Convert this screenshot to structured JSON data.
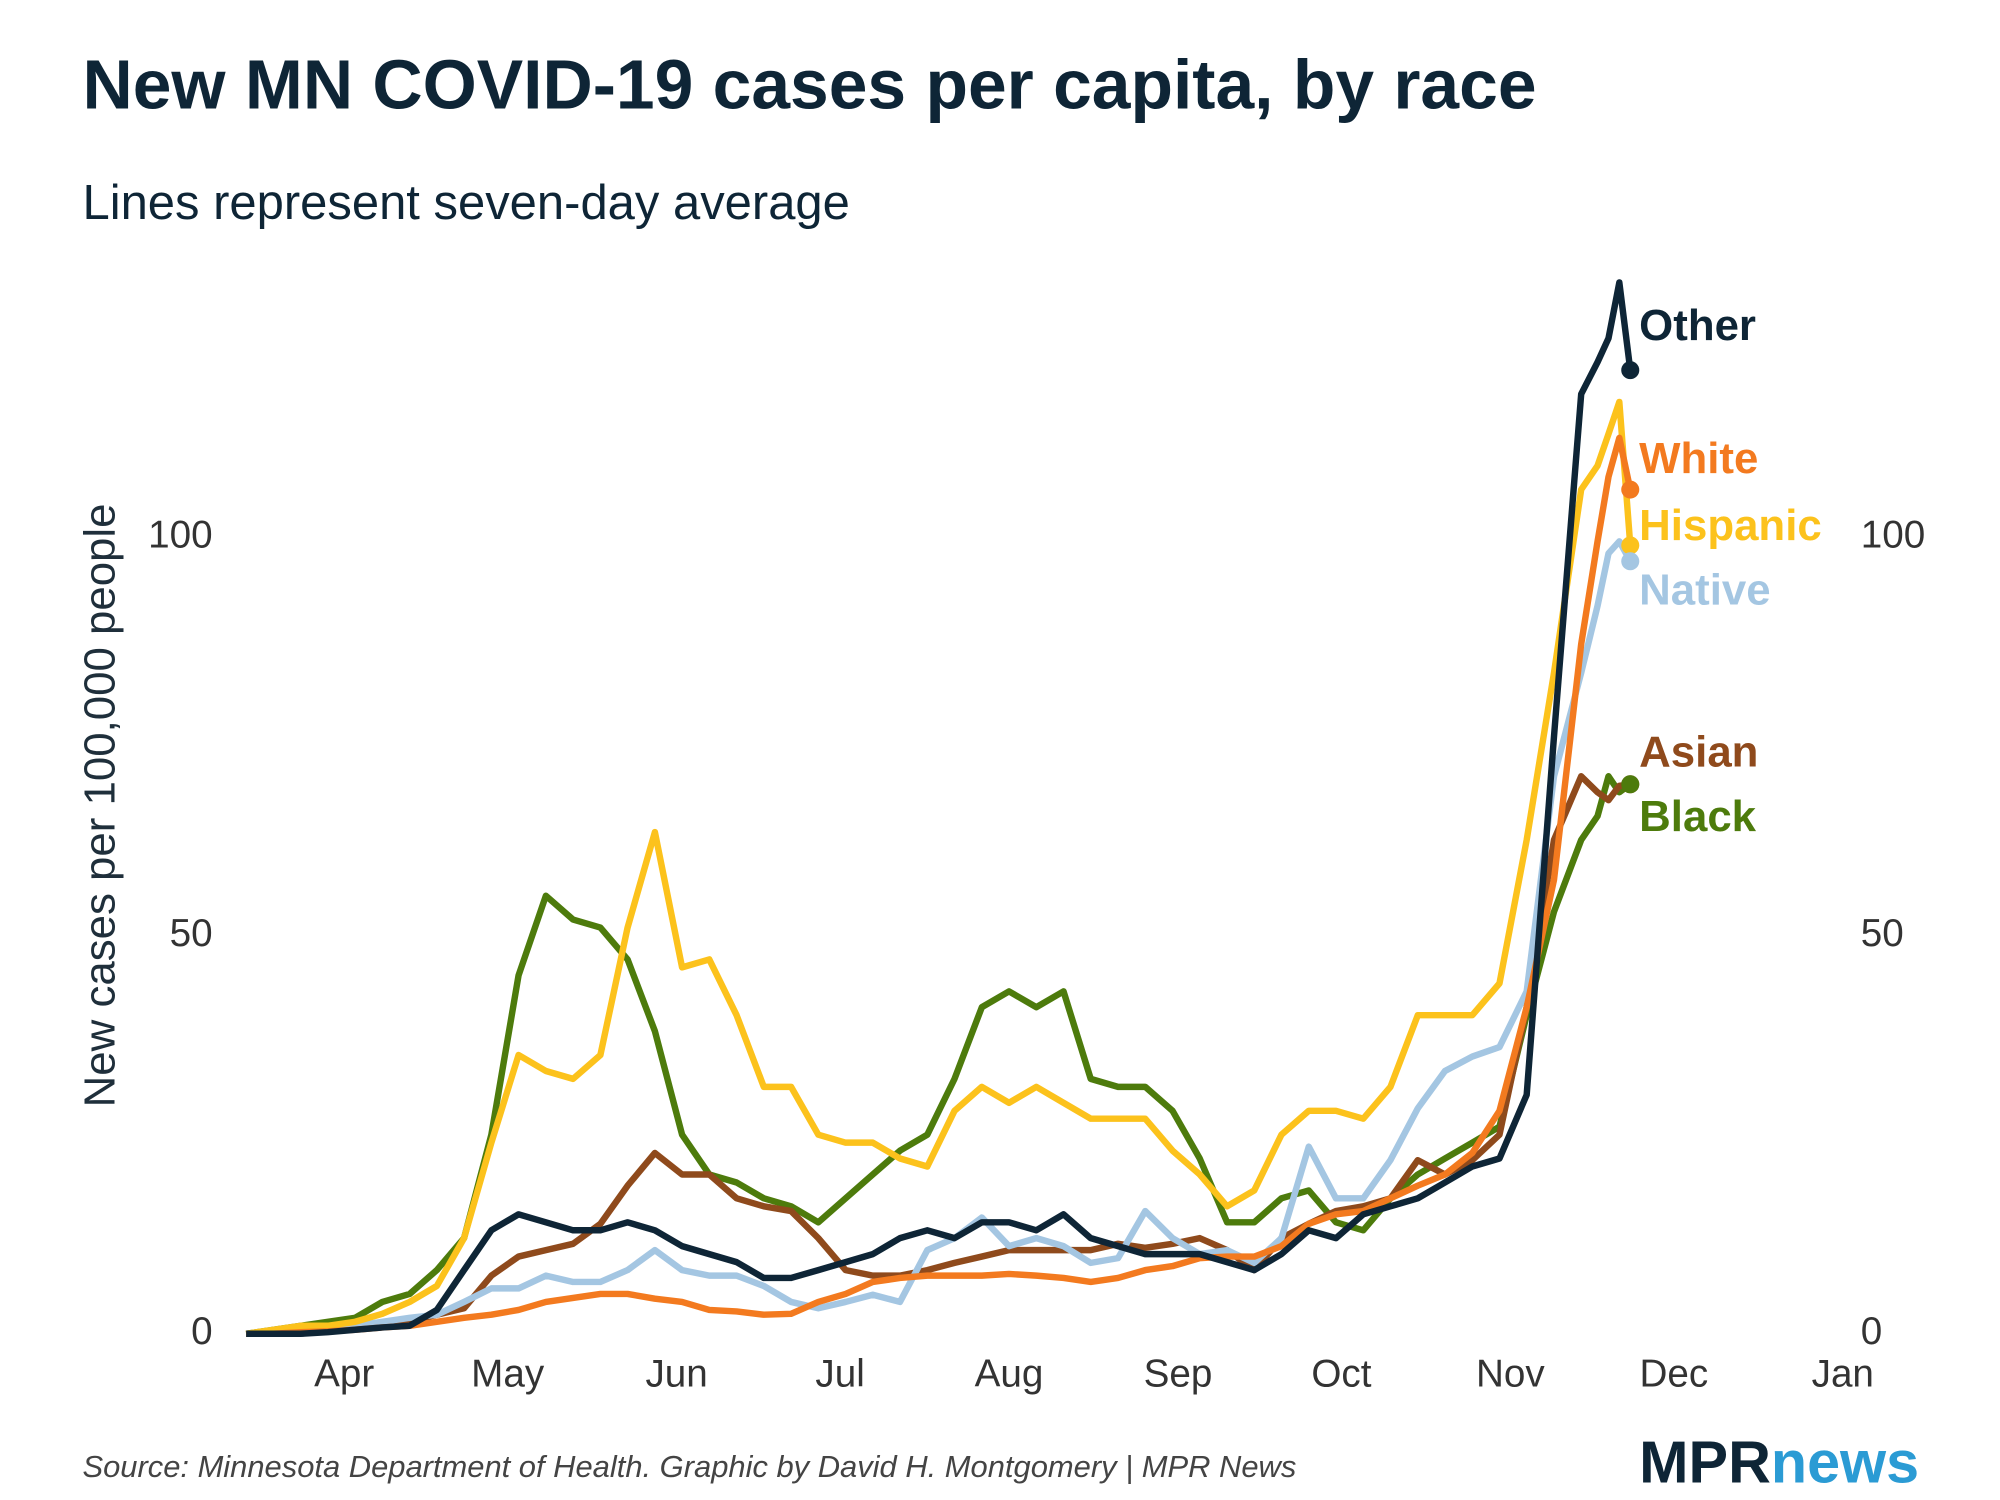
{
  "chart_data": {
    "type": "line",
    "title": "New MN COVID-19 cases per capita, by race",
    "subtitle": "Lines represent seven-day average",
    "y_label": "New cases per 100,000 people",
    "source": "Source: Minnesota Department of Health. Graphic by David H. Montgomery | MPR News",
    "x": [
      13,
      18,
      23,
      28,
      33,
      38,
      43,
      48,
      53,
      58,
      63,
      68,
      73,
      78,
      83,
      88,
      93,
      98,
      103,
      108,
      113,
      118,
      123,
      128,
      133,
      138,
      143,
      148,
      153,
      158,
      163,
      168,
      173,
      178,
      183,
      188,
      193,
      198,
      203,
      208,
      213,
      218,
      223,
      228,
      233,
      238,
      243,
      248,
      253,
      258,
      261,
      263,
      265,
      267
    ],
    "xlim": [
      13,
      306
    ],
    "xticks": [
      {
        "value": 31,
        "label": "Apr"
      },
      {
        "value": 61,
        "label": "May"
      },
      {
        "value": 92,
        "label": "Jun"
      },
      {
        "value": 122,
        "label": "Jul"
      },
      {
        "value": 153,
        "label": "Aug"
      },
      {
        "value": 184,
        "label": "Sep"
      },
      {
        "value": 214,
        "label": "Oct"
      },
      {
        "value": 245,
        "label": "Nov"
      },
      {
        "value": 275,
        "label": "Dec"
      },
      {
        "value": 306,
        "label": "Jan"
      }
    ],
    "ylim": [
      0,
      135
    ],
    "yticks": [
      0,
      50,
      100
    ],
    "grid": false,
    "series": [
      {
        "name": "Other",
        "color": "#0e2536",
        "values": [
          0,
          0,
          0,
          0.2,
          0.5,
          0.8,
          1,
          3,
          8,
          13,
          15,
          14,
          13,
          13,
          14,
          13,
          11,
          10,
          9,
          7,
          7,
          8,
          9,
          10,
          12,
          13,
          12,
          14,
          14,
          13,
          15,
          12,
          11,
          10,
          10,
          10,
          9,
          8,
          10,
          13,
          12,
          15,
          16,
          17,
          19,
          21,
          22,
          30,
          75,
          118,
          122,
          125,
          132,
          121
        ]
      },
      {
        "name": "White",
        "color": "#f37a1f",
        "values": [
          0,
          0,
          0.2,
          0.3,
          0.5,
          0.8,
          1,
          1.5,
          2,
          2.4,
          3,
          4,
          4.5,
          5,
          5,
          4.4,
          4,
          3,
          2.8,
          2.4,
          2.5,
          4,
          5,
          6.5,
          7,
          7.3,
          7.3,
          7.3,
          7.5,
          7.3,
          7,
          6.5,
          7,
          8,
          8.5,
          9.5,
          9.7,
          9.7,
          11,
          13.8,
          15,
          15.4,
          17,
          18.6,
          20,
          22.7,
          28,
          41,
          57,
          86.6,
          99.5,
          107.6,
          112.5,
          106
        ]
      },
      {
        "name": "Hispanic",
        "color": "#fcc21c",
        "values": [
          0,
          0.5,
          1,
          1,
          1.5,
          2.5,
          4,
          6,
          12,
          24,
          35,
          33,
          32,
          35,
          51,
          63,
          46,
          47,
          40,
          31,
          31,
          25,
          24,
          24,
          22,
          21,
          28,
          31,
          29,
          31,
          29,
          27,
          27,
          27,
          23,
          20,
          16,
          18,
          25,
          28,
          28,
          27,
          31,
          40,
          40,
          40,
          44,
          62,
          83,
          106,
          109,
          113,
          117,
          99
        ]
      },
      {
        "name": "Native",
        "color": "#a4c6e2",
        "values": [
          0,
          0,
          0,
          0.5,
          1,
          1.5,
          2,
          2.4,
          4,
          5.7,
          5.7,
          7.3,
          6.5,
          6.5,
          8,
          10.5,
          8,
          7.3,
          7.3,
          6,
          4,
          3.2,
          4,
          4.9,
          4,
          10.5,
          12,
          14.6,
          11,
          12,
          11,
          8.9,
          9.5,
          15.4,
          12,
          10,
          10.5,
          8.9,
          12,
          23.5,
          17,
          17,
          21.8,
          28.3,
          33,
          34.8,
          36,
          43,
          70,
          83,
          91.4,
          98,
          99.5,
          97
        ]
      },
      {
        "name": "Asian",
        "color": "#8f4a1c",
        "values": [
          0,
          0,
          0,
          0.5,
          0.8,
          1,
          1.5,
          2.4,
          3.2,
          7.3,
          9.7,
          10.5,
          11.3,
          13.8,
          18.6,
          22.7,
          20,
          20,
          17,
          16,
          15.4,
          12,
          8,
          7.3,
          7.3,
          8,
          8.9,
          9.7,
          10.5,
          10.5,
          10.5,
          10.5,
          11.3,
          10.8,
          11.3,
          12,
          10.5,
          8,
          12,
          13.8,
          15.4,
          16,
          17,
          21.8,
          20,
          21.8,
          25,
          41,
          62,
          70,
          68,
          67,
          68.8,
          69
        ]
      },
      {
        "name": "Black",
        "color": "#4d7b0c",
        "values": [
          0,
          0.5,
          1,
          1.5,
          2,
          4,
          5,
          8,
          12,
          25,
          45,
          55,
          52,
          51,
          47,
          38,
          25,
          20,
          19,
          17,
          16,
          14,
          17,
          20,
          23,
          25,
          32,
          41,
          43,
          41,
          43,
          32,
          31,
          31,
          28,
          22,
          14,
          14,
          17,
          18,
          14,
          13,
          17,
          20,
          22,
          24,
          26,
          40,
          53,
          62,
          65,
          70,
          68,
          69
        ]
      }
    ]
  },
  "logo": {
    "mpr": "MPR",
    "news": "news"
  }
}
